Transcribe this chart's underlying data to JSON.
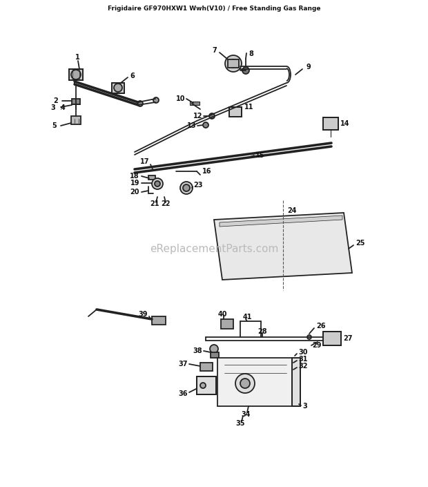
{
  "title": "Frigidaire GF970HXW1 Wwh(V10) / Free Standing Gas Range",
  "watermark": "eReplacementParts.com",
  "bg_color": "#ffffff",
  "lc": "#222222",
  "wm_color": "#bbbbbb",
  "fig_width": 6.2,
  "fig_height": 7.05,
  "dpi": 100,
  "lw": 1.3
}
